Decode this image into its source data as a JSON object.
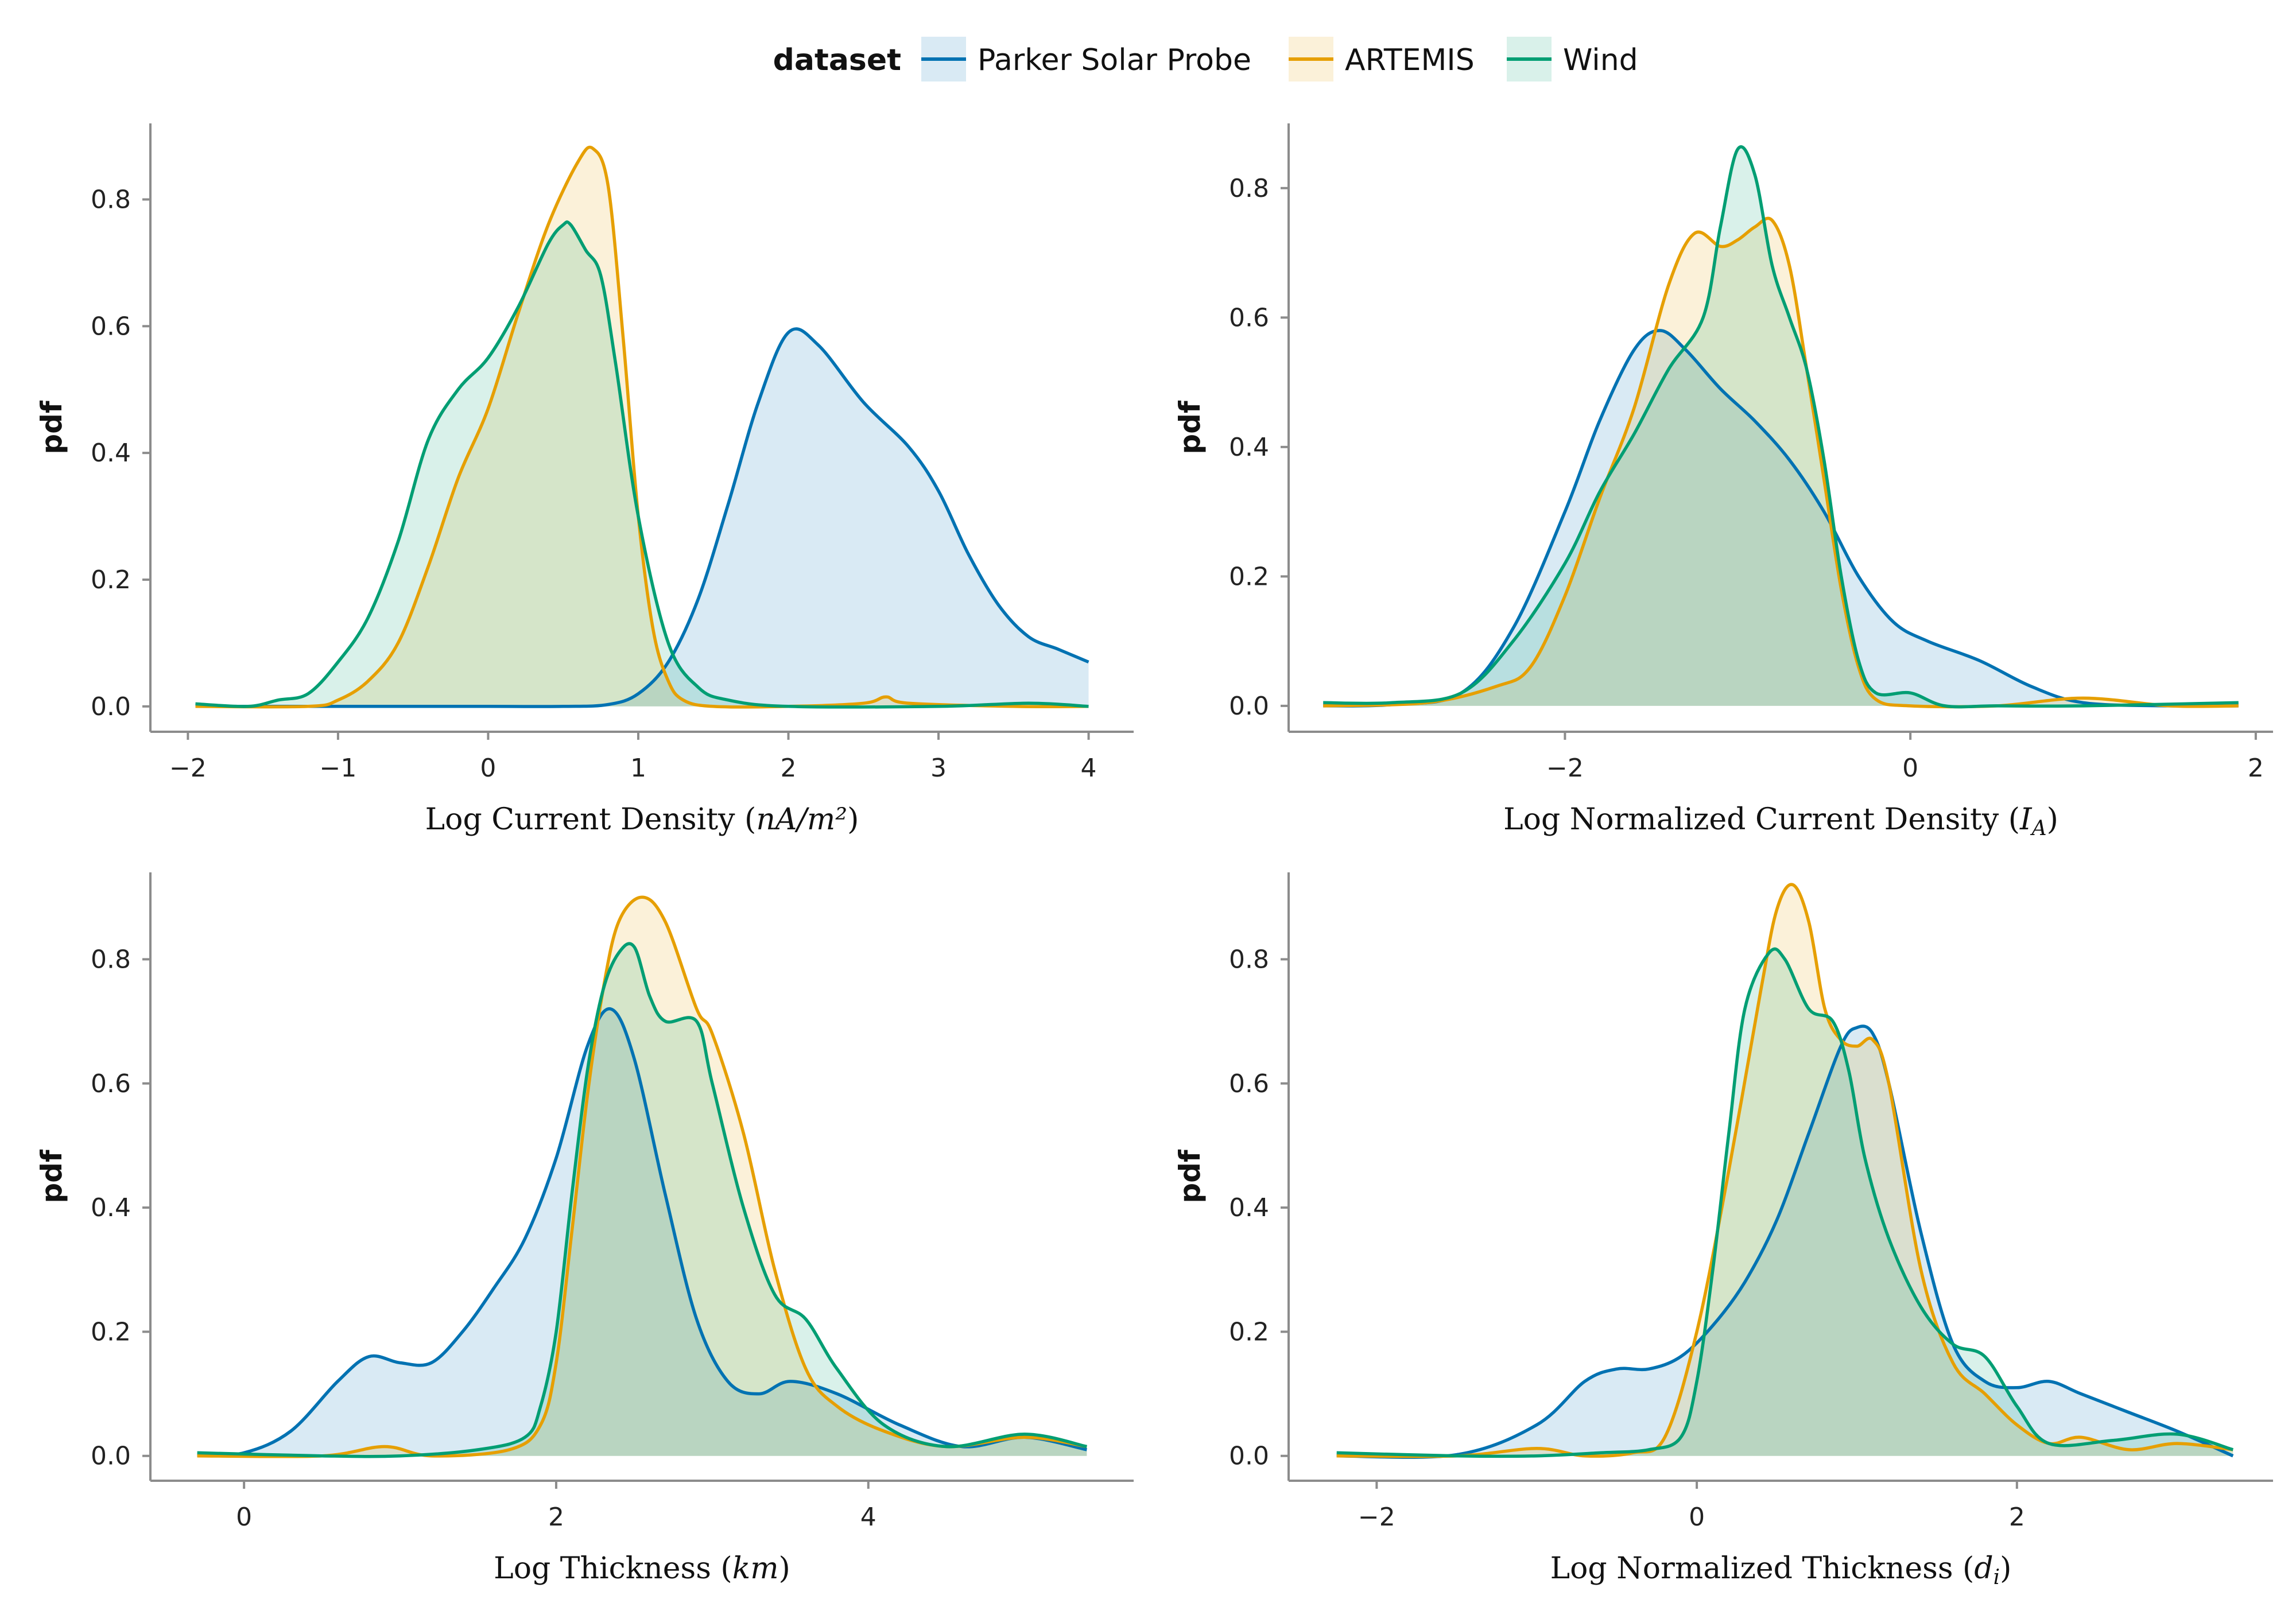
{
  "legend": {
    "title": "dataset",
    "entries": [
      {
        "name": "Parker Solar Probe",
        "color": "#0072b2"
      },
      {
        "name": "ARTEMIS",
        "color": "#e69f00"
      },
      {
        "name": "Wind",
        "color": "#009e73"
      }
    ],
    "placement": "top-center"
  },
  "chart_data": [
    {
      "type": "area",
      "xlabel": "Log Current Density (nA/m²)",
      "ylabel": "pdf",
      "xlim": [
        -2.25,
        4.3
      ],
      "ylim": [
        -0.04,
        0.92
      ],
      "xticks": [
        -2,
        -1,
        0,
        1,
        2,
        3,
        4
      ],
      "yticks": [
        0.0,
        0.2,
        0.4,
        0.6,
        0.8
      ],
      "series": [
        {
          "name": "Parker Solar Probe",
          "x": [
            -1.95,
            -1,
            0,
            0.5,
            0.8,
            1.0,
            1.2,
            1.4,
            1.6,
            1.8,
            2.0,
            2.2,
            2.5,
            2.8,
            3.0,
            3.2,
            3.4,
            3.6,
            3.8,
            4.0
          ],
          "y": [
            0,
            0,
            0,
            0,
            0.003,
            0.02,
            0.07,
            0.17,
            0.32,
            0.48,
            0.59,
            0.57,
            0.48,
            0.41,
            0.34,
            0.24,
            0.16,
            0.11,
            0.09,
            0.07
          ]
        },
        {
          "name": "ARTEMIS",
          "x": [
            -1.95,
            -1.2,
            -1.0,
            -0.8,
            -0.6,
            -0.4,
            -0.2,
            0,
            0.2,
            0.4,
            0.6,
            0.7,
            0.8,
            0.9,
            1.0,
            1.1,
            1.2,
            1.3,
            1.5,
            2.0,
            2.5,
            2.65,
            2.8,
            3.5,
            4.0
          ],
          "y": [
            0,
            0,
            0.01,
            0.04,
            0.1,
            0.22,
            0.36,
            0.47,
            0.62,
            0.76,
            0.86,
            0.88,
            0.82,
            0.58,
            0.3,
            0.12,
            0.04,
            0.01,
            0,
            0,
            0.005,
            0.015,
            0.005,
            0,
            0
          ]
        },
        {
          "name": "Wind",
          "x": [
            -1.95,
            -1.6,
            -1.4,
            -1.2,
            -1.0,
            -0.8,
            -0.6,
            -0.4,
            -0.2,
            0,
            0.2,
            0.4,
            0.5,
            0.55,
            0.65,
            0.75,
            0.85,
            1.0,
            1.2,
            1.4,
            1.6,
            2.0,
            3.0,
            3.6,
            4.0
          ],
          "y": [
            0.004,
            0,
            0.01,
            0.02,
            0.07,
            0.14,
            0.26,
            0.42,
            0.5,
            0.55,
            0.63,
            0.73,
            0.76,
            0.76,
            0.72,
            0.68,
            0.54,
            0.3,
            0.1,
            0.03,
            0.01,
            0,
            0,
            0.005,
            0
          ]
        }
      ]
    },
    {
      "type": "area",
      "xlabel": "Log Normalized Current Density (I_A)",
      "ylabel": "pdf",
      "xlim": [
        -3.6,
        2.1
      ],
      "ylim": [
        -0.04,
        0.9
      ],
      "xticks": [
        -2,
        0,
        2
      ],
      "yticks": [
        0.0,
        0.2,
        0.4,
        0.6,
        0.8
      ],
      "series": [
        {
          "name": "Parker Solar Probe",
          "x": [
            -3.4,
            -3,
            -2.6,
            -2.3,
            -2.0,
            -1.8,
            -1.6,
            -1.45,
            -1.3,
            -1.1,
            -0.9,
            -0.7,
            -0.5,
            -0.3,
            -0.1,
            0.1,
            0.4,
            0.7,
            1.0,
            1.5,
            1.9
          ],
          "y": [
            0,
            0.002,
            0.02,
            0.12,
            0.3,
            0.44,
            0.55,
            0.58,
            0.55,
            0.49,
            0.44,
            0.38,
            0.3,
            0.2,
            0.13,
            0.1,
            0.07,
            0.03,
            0.005,
            0,
            0
          ]
        },
        {
          "name": "ARTEMIS",
          "x": [
            -3.4,
            -2.8,
            -2.4,
            -2.2,
            -2.0,
            -1.8,
            -1.6,
            -1.4,
            -1.25,
            -1.1,
            -1.0,
            -0.9,
            -0.8,
            -0.7,
            -0.6,
            -0.5,
            -0.4,
            -0.3,
            -0.2,
            0,
            0.5,
            1.0,
            1.5,
            1.9
          ],
          "y": [
            0,
            0.005,
            0.03,
            0.06,
            0.17,
            0.32,
            0.46,
            0.65,
            0.73,
            0.71,
            0.72,
            0.74,
            0.75,
            0.68,
            0.52,
            0.35,
            0.18,
            0.06,
            0.01,
            0,
            0,
            0.012,
            0,
            0
          ]
        },
        {
          "name": "Wind",
          "x": [
            -3.4,
            -3,
            -2.6,
            -2.3,
            -2.0,
            -1.8,
            -1.6,
            -1.4,
            -1.2,
            -1.1,
            -1.0,
            -0.9,
            -0.8,
            -0.7,
            -0.6,
            -0.5,
            -0.4,
            -0.3,
            -0.2,
            0,
            0.2,
            0.5,
            1.0,
            1.9
          ],
          "y": [
            0.005,
            0.005,
            0.02,
            0.1,
            0.22,
            0.33,
            0.42,
            0.52,
            0.6,
            0.74,
            0.86,
            0.82,
            0.68,
            0.6,
            0.52,
            0.38,
            0.2,
            0.07,
            0.02,
            0.02,
            0,
            0,
            0,
            0.005
          ]
        }
      ]
    },
    {
      "type": "area",
      "xlabel": "Log Thickness (km)",
      "ylabel": "pdf",
      "xlim": [
        -0.6,
        5.7
      ],
      "ylim": [
        -0.04,
        0.94
      ],
      "xticks": [
        0,
        2,
        4
      ],
      "yticks": [
        0.0,
        0.2,
        0.4,
        0.6,
        0.8
      ],
      "series": [
        {
          "name": "Parker Solar Probe",
          "x": [
            -0.3,
            0,
            0.3,
            0.6,
            0.8,
            1.0,
            1.2,
            1.4,
            1.6,
            1.8,
            2.0,
            2.2,
            2.35,
            2.5,
            2.7,
            2.9,
            3.1,
            3.3,
            3.5,
            3.8,
            4.2,
            4.6,
            5.0,
            5.4
          ],
          "y": [
            0,
            0.005,
            0.04,
            0.12,
            0.16,
            0.15,
            0.15,
            0.2,
            0.27,
            0.35,
            0.48,
            0.66,
            0.72,
            0.64,
            0.42,
            0.22,
            0.12,
            0.1,
            0.12,
            0.1,
            0.05,
            0.015,
            0.03,
            0.01
          ]
        },
        {
          "name": "ARTEMIS",
          "x": [
            -0.3,
            0.5,
            0.9,
            1.2,
            1.7,
            1.9,
            2.0,
            2.1,
            2.2,
            2.3,
            2.4,
            2.55,
            2.7,
            2.9,
            3.0,
            3.2,
            3.4,
            3.6,
            3.8,
            4.1,
            4.5,
            5.0,
            5.4
          ],
          "y": [
            0,
            0,
            0.015,
            0,
            0.01,
            0.05,
            0.15,
            0.36,
            0.58,
            0.75,
            0.86,
            0.9,
            0.86,
            0.72,
            0.68,
            0.52,
            0.3,
            0.14,
            0.08,
            0.04,
            0.015,
            0.03,
            0.015
          ]
        },
        {
          "name": "Wind",
          "x": [
            -0.3,
            0.5,
            1.0,
            1.5,
            1.8,
            1.9,
            2.0,
            2.1,
            2.2,
            2.3,
            2.4,
            2.5,
            2.6,
            2.7,
            2.9,
            3.0,
            3.2,
            3.4,
            3.6,
            3.8,
            4.1,
            4.5,
            5.0,
            5.4
          ],
          "y": [
            0.005,
            0,
            0,
            0.01,
            0.03,
            0.08,
            0.2,
            0.42,
            0.62,
            0.75,
            0.81,
            0.82,
            0.74,
            0.7,
            0.7,
            0.6,
            0.4,
            0.26,
            0.22,
            0.14,
            0.05,
            0.015,
            0.035,
            0.015
          ]
        }
      ]
    },
    {
      "type": "area",
      "xlabel": "Log Normalized Thickness (d_i)",
      "ylabel": "pdf",
      "xlim": [
        -2.55,
        3.6
      ],
      "ylim": [
        -0.04,
        0.94
      ],
      "xticks": [
        -2,
        0,
        2
      ],
      "yticks": [
        0.0,
        0.2,
        0.4,
        0.6,
        0.8
      ],
      "series": [
        {
          "name": "Parker Solar Probe",
          "x": [
            -2.25,
            -1.5,
            -1.0,
            -0.7,
            -0.5,
            -0.3,
            -0.1,
            0.1,
            0.3,
            0.5,
            0.7,
            0.9,
            1.0,
            1.1,
            1.2,
            1.4,
            1.6,
            1.8,
            2.0,
            2.2,
            2.4,
            2.7,
            3.0,
            3.35
          ],
          "y": [
            0,
            0.002,
            0.05,
            0.12,
            0.14,
            0.14,
            0.16,
            0.21,
            0.28,
            0.38,
            0.52,
            0.66,
            0.69,
            0.68,
            0.6,
            0.36,
            0.18,
            0.12,
            0.11,
            0.12,
            0.1,
            0.07,
            0.04,
            0
          ]
        },
        {
          "name": "ARTEMIS",
          "x": [
            -2.25,
            -1.5,
            -1.0,
            -0.7,
            -0.4,
            -0.2,
            0,
            0.2,
            0.4,
            0.5,
            0.6,
            0.7,
            0.8,
            0.9,
            1.0,
            1.1,
            1.2,
            1.4,
            1.6,
            1.8,
            2.0,
            2.2,
            2.4,
            2.7,
            3.0,
            3.35
          ],
          "y": [
            0,
            0,
            0.012,
            0,
            0.005,
            0.03,
            0.2,
            0.46,
            0.75,
            0.88,
            0.92,
            0.86,
            0.72,
            0.67,
            0.66,
            0.67,
            0.6,
            0.3,
            0.15,
            0.1,
            0.05,
            0.02,
            0.03,
            0.01,
            0.02,
            0.01
          ]
        },
        {
          "name": "Wind",
          "x": [
            -2.25,
            -1.5,
            -1.0,
            -0.6,
            -0.3,
            -0.1,
            0,
            0.1,
            0.2,
            0.3,
            0.45,
            0.55,
            0.7,
            0.85,
            0.95,
            1.05,
            1.2,
            1.4,
            1.6,
            1.8,
            2.0,
            2.2,
            2.6,
            3.0,
            3.35
          ],
          "y": [
            0.005,
            0,
            0,
            0.005,
            0.01,
            0.03,
            0.12,
            0.3,
            0.52,
            0.72,
            0.81,
            0.8,
            0.72,
            0.7,
            0.62,
            0.48,
            0.35,
            0.24,
            0.18,
            0.16,
            0.08,
            0.02,
            0.025,
            0.035,
            0.01
          ]
        }
      ]
    }
  ]
}
